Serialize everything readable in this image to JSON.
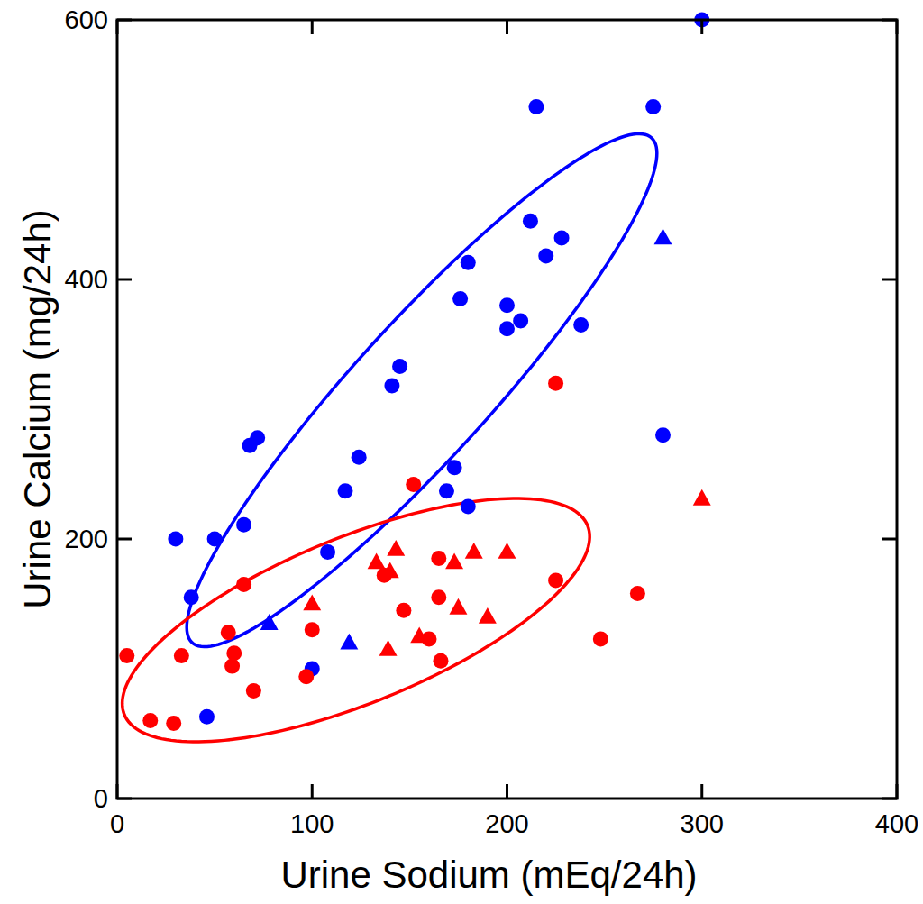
{
  "chart_data": {
    "type": "scatter",
    "x_label": "Urine Sodium (mEq/24h)",
    "y_label": "Urine Calcium (mg/24h)",
    "xlim": [
      0,
      400
    ],
    "xticks": [
      0,
      100,
      200,
      300,
      400
    ],
    "ylim": [
      0,
      600
    ],
    "yticks": [
      0,
      200,
      400,
      600
    ],
    "grid": false,
    "series": [
      {
        "color": "#0000ff",
        "marker": "circle",
        "x": [
          300,
          215,
          275,
          212,
          228,
          220,
          180,
          176,
          200,
          207,
          200,
          238,
          145,
          141,
          280,
          72,
          68,
          124,
          173,
          169,
          117,
          65,
          180,
          30,
          50,
          108,
          38,
          100,
          46
        ],
        "values": [
          600,
          533,
          533,
          445,
          432,
          418,
          413,
          385,
          380,
          368,
          362,
          365,
          333,
          318,
          280,
          278,
          272,
          263,
          255,
          237,
          237,
          211,
          225,
          200,
          200,
          190,
          155,
          100,
          63
        ]
      },
      {
        "color": "#0000ff",
        "marker": "triangle",
        "x": [
          280,
          78,
          119
        ],
        "values": [
          432,
          135,
          120
        ]
      },
      {
        "color": "#ff0000",
        "marker": "circle",
        "x": [
          225,
          152,
          65,
          225,
          165,
          165,
          147,
          57,
          60,
          59,
          100,
          160,
          166,
          70,
          97,
          5,
          33,
          17,
          29,
          248,
          267,
          137
        ],
        "values": [
          320,
          242,
          165,
          168,
          185,
          155,
          145,
          128,
          112,
          102,
          130,
          123,
          106,
          83,
          94,
          110,
          110,
          60,
          58,
          123,
          158,
          172
        ]
      },
      {
        "color": "#ff0000",
        "marker": "triangle",
        "x": [
          300,
          133,
          143,
          183,
          200,
          173,
          140,
          100,
          175,
          190,
          155,
          139
        ],
        "values": [
          231,
          182,
          192,
          190,
          190,
          182,
          175,
          150,
          147,
          140,
          125,
          115
        ]
      }
    ],
    "ellipses": [
      {
        "color": "#0000ff",
        "center": [
          156.3,
          314.6
        ],
        "axis1": [
          117.9,
          194.4
        ],
        "axis2": [
          25.4,
          -35.4
        ]
      },
      {
        "color": "#ff0000",
        "center": [
          122.5,
          137.5
        ],
        "axis1": [
          118.8,
          72.9
        ],
        "axis2": [
          16.2,
          -59.0
        ]
      }
    ]
  }
}
